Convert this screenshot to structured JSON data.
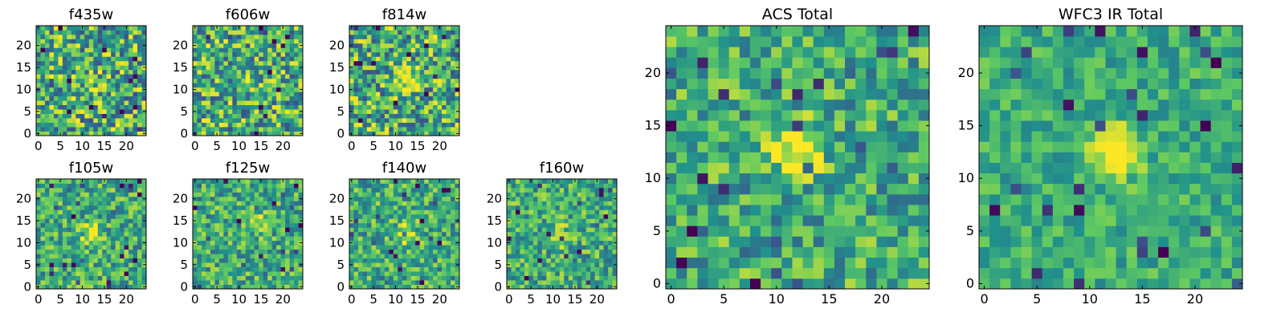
{
  "figure": {
    "background": "#ffffff",
    "colormap": "viridis",
    "colormap_stops": [
      "#440154",
      "#3b528b",
      "#21918c",
      "#5ec962",
      "#fde725"
    ]
  },
  "chart_data": [
    {
      "type": "heatmap",
      "title": "f435w",
      "grid_size": 25,
      "xlim": [
        -0.5,
        24.5
      ],
      "ylim": [
        -0.5,
        24.5
      ],
      "xticks": [
        "0",
        "5",
        "10",
        "15",
        "20"
      ],
      "yticks": [
        "0",
        "5",
        "10",
        "15",
        "20"
      ],
      "grid": false,
      "source_center": [
        13,
        12
      ],
      "source_peak": 0.1,
      "noise": "high"
    },
    {
      "type": "heatmap",
      "title": "f606w",
      "grid_size": 25,
      "xlim": [
        -0.5,
        24.5
      ],
      "ylim": [
        -0.5,
        24.5
      ],
      "xticks": [
        "0",
        "5",
        "10",
        "15",
        "20"
      ],
      "yticks": [
        "0",
        "5",
        "10",
        "15",
        "20"
      ],
      "grid": false,
      "source_center": [
        12,
        12
      ],
      "source_peak": 0.3,
      "noise": "high"
    },
    {
      "type": "heatmap",
      "title": "f814w",
      "grid_size": 25,
      "xlim": [
        -0.5,
        24.5
      ],
      "ylim": [
        -0.5,
        24.5
      ],
      "xticks": [
        "0",
        "5",
        "10",
        "15",
        "20"
      ],
      "yticks": [
        "0",
        "5",
        "10",
        "15",
        "20"
      ],
      "grid": false,
      "source_center": [
        13,
        12
      ],
      "source_peak": 0.55,
      "noise": "high"
    },
    {
      "type": "heatmap",
      "title": "f105w",
      "grid_size": 25,
      "xlim": [
        -0.5,
        24.5
      ],
      "ylim": [
        -0.5,
        24.5
      ],
      "xticks": [
        "0",
        "5",
        "10",
        "15",
        "20"
      ],
      "yticks": [
        "0",
        "5",
        "10",
        "15",
        "20"
      ],
      "grid": false,
      "source_center": [
        12,
        12
      ],
      "source_peak": 0.45,
      "noise": "medium"
    },
    {
      "type": "heatmap",
      "title": "f125w",
      "grid_size": 25,
      "xlim": [
        -0.5,
        24.5
      ],
      "ylim": [
        -0.5,
        24.5
      ],
      "xticks": [
        "0",
        "5",
        "10",
        "15",
        "20"
      ],
      "yticks": [
        "0",
        "5",
        "10",
        "15",
        "20"
      ],
      "grid": false,
      "source_center": [
        14,
        14
      ],
      "source_peak": 0.4,
      "noise": "medium"
    },
    {
      "type": "heatmap",
      "title": "f140w",
      "grid_size": 25,
      "xlim": [
        -0.5,
        24.5
      ],
      "ylim": [
        -0.5,
        24.5
      ],
      "xticks": [
        "0",
        "5",
        "10",
        "15",
        "20"
      ],
      "yticks": [
        "0",
        "5",
        "10",
        "15",
        "20"
      ],
      "grid": false,
      "source_center": [
        12,
        12
      ],
      "source_peak": 0.35,
      "noise": "medium"
    },
    {
      "type": "heatmap",
      "title": "f160w",
      "grid_size": 25,
      "xlim": [
        -0.5,
        24.5
      ],
      "ylim": [
        -0.5,
        24.5
      ],
      "xticks": [
        "0",
        "5",
        "10",
        "15",
        "20"
      ],
      "yticks": [
        "0",
        "5",
        "10",
        "15",
        "20"
      ],
      "grid": false,
      "source_center": [
        12,
        12
      ],
      "source_peak": 0.4,
      "noise": "medium"
    },
    {
      "type": "heatmap",
      "title": "ACS Total",
      "grid_size": 25,
      "xlim": [
        -0.5,
        24.5
      ],
      "ylim": [
        -0.5,
        24.5
      ],
      "xticks": [
        "0",
        "5",
        "10",
        "15",
        "20"
      ],
      "yticks": [
        "0",
        "5",
        "10",
        "15",
        "20"
      ],
      "grid": false,
      "source_center": [
        12,
        13
      ],
      "source_peak": 0.55,
      "noise": "medium"
    },
    {
      "type": "heatmap",
      "title": "WFC3 IR Total",
      "grid_size": 25,
      "xlim": [
        -0.5,
        24.5
      ],
      "ylim": [
        -0.5,
        24.5
      ],
      "xticks": [
        "0",
        "5",
        "10",
        "15",
        "20"
      ],
      "yticks": [
        "0",
        "5",
        "10",
        "15",
        "20"
      ],
      "grid": false,
      "source_center": [
        12.5,
        12.5
      ],
      "source_peak": 0.6,
      "noise": "low"
    }
  ]
}
